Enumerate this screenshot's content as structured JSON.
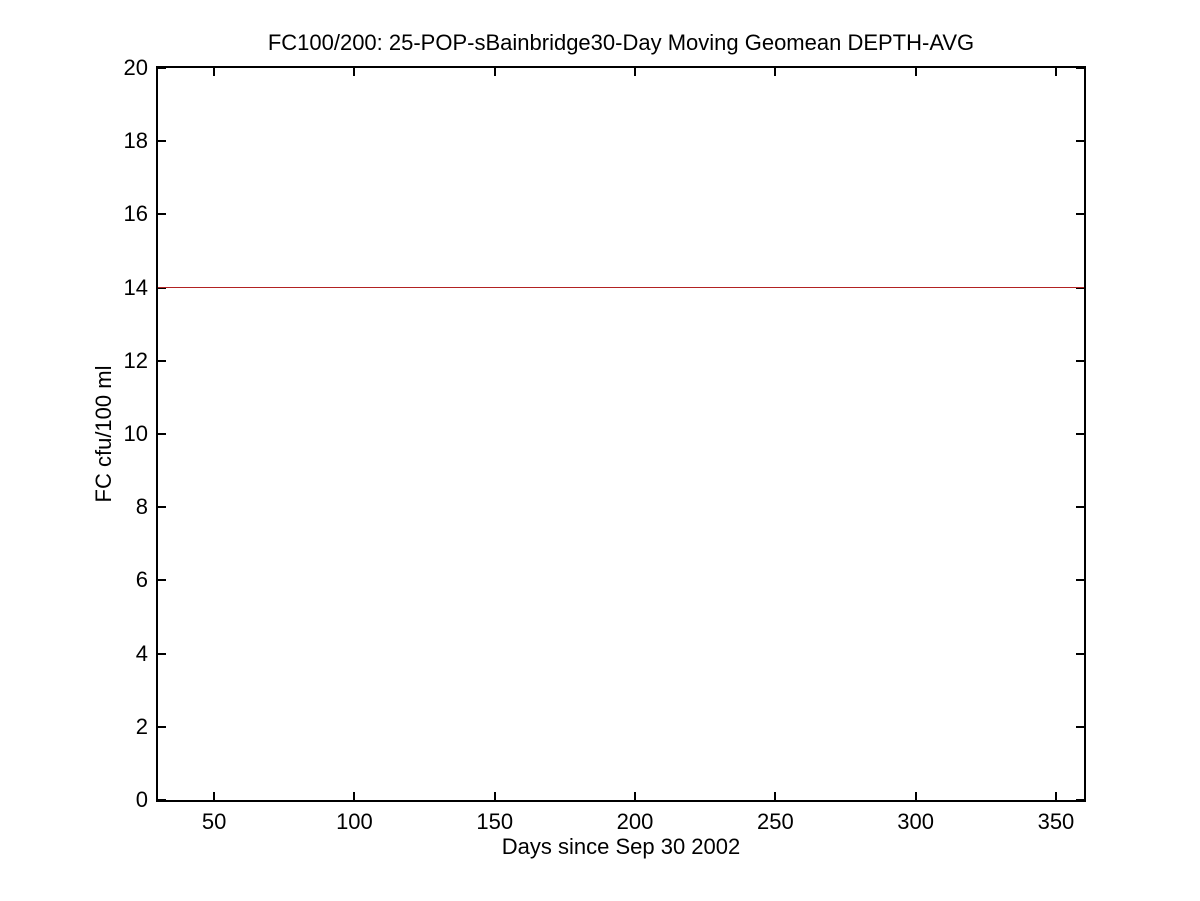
{
  "figure": {
    "background": "#ffffff",
    "axis_color": "#000000"
  },
  "chart_data": {
    "type": "line",
    "title": "FC100/200: 25-POP-sBainbridge30-Day Moving Geomean DEPTH-AVG",
    "xlabel": "Days since Sep 30 2002",
    "ylabel": "FC cfu/100 ml",
    "xlim": [
      30,
      360
    ],
    "ylim": [
      0,
      20
    ],
    "xticks": [
      50,
      100,
      150,
      200,
      250,
      300,
      350
    ],
    "yticks": [
      0,
      2,
      4,
      6,
      8,
      10,
      12,
      14,
      16,
      18,
      20
    ],
    "grid": false,
    "legend": false,
    "tick_direction": "in",
    "box": true,
    "series": [
      {
        "name": "30-day moving geomean",
        "color": "#b22222",
        "x": [
          30,
          360
        ],
        "y": [
          14,
          14
        ]
      }
    ]
  }
}
